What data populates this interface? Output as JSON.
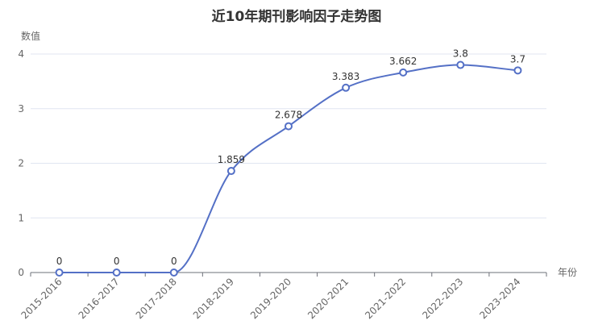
{
  "chart_data": {
    "type": "line",
    "title": "近10年期刊影响因子走势图",
    "ylabel": "数值",
    "xlabel": "年份",
    "ylim": [
      0,
      4
    ],
    "yticks": [
      0,
      1,
      2,
      3,
      4
    ],
    "categories": [
      "2015-2016",
      "2016-2017",
      "2017-2018",
      "2018-2019",
      "2019-2020",
      "2020-2021",
      "2021-2022",
      "2022-2023",
      "2023-2024"
    ],
    "series": [
      {
        "values": [
          0,
          0,
          0,
          1.859,
          2.678,
          3.383,
          3.662,
          3.8,
          3.7
        ],
        "labels": [
          "0",
          "0",
          "0",
          "1.859",
          "2.678",
          "3.383",
          "3.662",
          "3.8",
          "3.7"
        ],
        "color": "#5470c6"
      }
    ],
    "grid": true,
    "smooth": true
  }
}
